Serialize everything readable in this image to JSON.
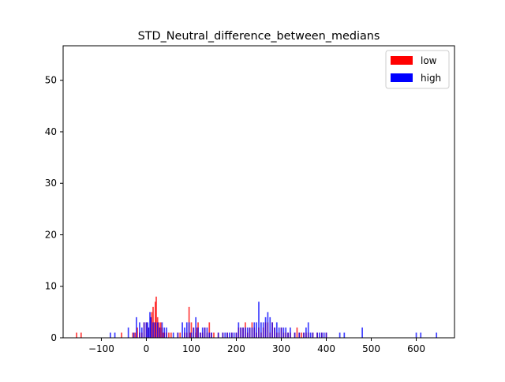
{
  "chart_data": {
    "type": "bar",
    "title": "STD_Neutral_difference_between_medians",
    "xlabel": "",
    "ylabel": "",
    "xlim": [
      -185,
      685
    ],
    "ylim": [
      0,
      56.7
    ],
    "x_ticks": [
      -100,
      0,
      100,
      200,
      300,
      400,
      500,
      600
    ],
    "y_ticks": [
      0,
      10,
      20,
      30,
      40,
      50
    ],
    "x_tick_labels": [
      "−100",
      "0",
      "100",
      "200",
      "300",
      "400",
      "500",
      "600"
    ],
    "y_tick_labels": [
      "0",
      "10",
      "20",
      "30",
      "40",
      "50"
    ],
    "grid": false,
    "legend_position": "top-right",
    "bin_width": 3,
    "series": [
      {
        "name": "low",
        "color": "#ff0000",
        "x": [
          -155,
          -145,
          -55,
          -30,
          -25,
          -20,
          -15,
          -10,
          -5,
          0,
          5,
          10,
          12,
          15,
          18,
          20,
          22,
          25,
          28,
          30,
          32,
          35,
          38,
          40,
          45,
          50,
          55,
          70,
          75,
          85,
          90,
          95,
          98,
          100,
          105,
          110,
          112,
          115,
          120,
          125,
          130,
          135,
          140,
          145,
          150,
          160,
          170,
          180,
          190,
          200,
          205,
          210,
          215,
          220,
          225,
          230,
          235,
          240,
          245,
          250,
          255,
          260,
          265,
          270,
          275,
          280,
          285,
          290,
          295,
          300,
          305,
          310,
          315,
          320,
          330,
          335,
          340,
          345,
          350,
          355,
          360,
          370,
          380,
          390,
          400
        ],
        "values": [
          1,
          1,
          1,
          1,
          1,
          2,
          1,
          1,
          3,
          3,
          2,
          4,
          5,
          6,
          3,
          7,
          8,
          4,
          3,
          2,
          3,
          2,
          1,
          1,
          1,
          1,
          1,
          1,
          1,
          1,
          1,
          6,
          1,
          3,
          2,
          1,
          2,
          3,
          1,
          1,
          2,
          1,
          3,
          1,
          1,
          1,
          1,
          1,
          1,
          1,
          2,
          2,
          2,
          3,
          1,
          2,
          3,
          2,
          1,
          2,
          1,
          2,
          3,
          3,
          1,
          3,
          2,
          1,
          1,
          2,
          1,
          1,
          1,
          1,
          1,
          2,
          1,
          1,
          1,
          1,
          1,
          1,
          1,
          1,
          1
        ]
      },
      {
        "name": "high",
        "color": "#0000ff",
        "x": [
          -80,
          -70,
          -40,
          -28,
          -22,
          -15,
          -10,
          -5,
          0,
          3,
          5,
          8,
          10,
          15,
          20,
          25,
          30,
          35,
          40,
          45,
          60,
          70,
          80,
          85,
          90,
          95,
          100,
          105,
          110,
          115,
          120,
          125,
          130,
          135,
          140,
          145,
          160,
          170,
          175,
          180,
          185,
          190,
          195,
          200,
          205,
          210,
          215,
          220,
          225,
          230,
          235,
          240,
          245,
          250,
          255,
          260,
          265,
          270,
          275,
          280,
          285,
          290,
          295,
          300,
          305,
          310,
          315,
          320,
          330,
          340,
          350,
          355,
          360,
          365,
          370,
          380,
          385,
          390,
          395,
          400,
          430,
          440,
          480,
          600,
          610,
          645
        ],
        "values": [
          1,
          1,
          2,
          1,
          4,
          3,
          2,
          3,
          3,
          3,
          2,
          5,
          4,
          3,
          3,
          3,
          2,
          3,
          2,
          2,
          1,
          1,
          3,
          2,
          3,
          3,
          1,
          2,
          4,
          2,
          1,
          2,
          2,
          2,
          1,
          1,
          1,
          1,
          1,
          1,
          1,
          1,
          1,
          1,
          3,
          2,
          2,
          2,
          2,
          2,
          2,
          3,
          3,
          7,
          3,
          3,
          4,
          5,
          4,
          3,
          2,
          3,
          2,
          2,
          2,
          2,
          1,
          2,
          1,
          1,
          1,
          2,
          3,
          1,
          1,
          1,
          1,
          1,
          1,
          1,
          1,
          1,
          2,
          1,
          1,
          1
        ]
      }
    ]
  }
}
